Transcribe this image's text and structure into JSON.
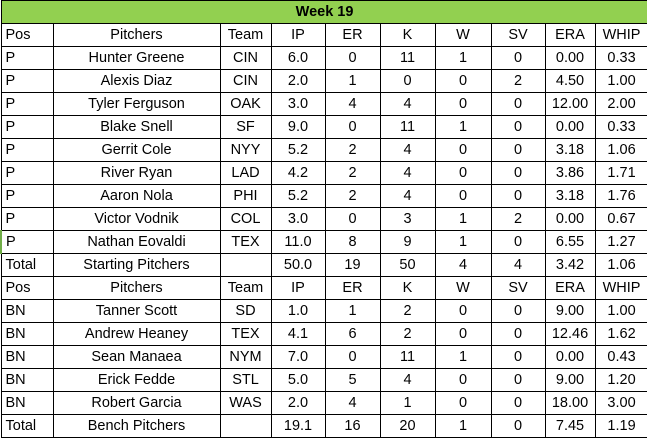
{
  "title": "Week 19",
  "colors": {
    "title_bg": "#92d050",
    "grid": "#000000"
  },
  "starting": {
    "header": [
      "Pos",
      "Pitchers",
      "Team",
      "IP",
      "ER",
      "K",
      "W",
      "SV",
      "ERA",
      "WHIP"
    ],
    "rows": [
      [
        "P",
        "Hunter Greene",
        "CIN",
        "6.0",
        "0",
        "11",
        "1",
        "0",
        "0.00",
        "0.33"
      ],
      [
        "P",
        "Alexis Diaz",
        "CIN",
        "2.0",
        "1",
        "0",
        "0",
        "2",
        "4.50",
        "1.00"
      ],
      [
        "P",
        "Tyler Ferguson",
        "OAK",
        "3.0",
        "4",
        "4",
        "0",
        "0",
        "12.00",
        "2.00"
      ],
      [
        "P",
        "Blake Snell",
        "SF",
        "9.0",
        "0",
        "11",
        "1",
        "0",
        "0.00",
        "0.33"
      ],
      [
        "P",
        "Gerrit Cole",
        "NYY",
        "5.2",
        "2",
        "4",
        "0",
        "0",
        "3.18",
        "1.06"
      ],
      [
        "P",
        "River Ryan",
        "LAD",
        "4.2",
        "2",
        "4",
        "0",
        "0",
        "3.86",
        "1.71"
      ],
      [
        "P",
        "Aaron Nola",
        "PHI",
        "5.2",
        "2",
        "4",
        "0",
        "0",
        "3.18",
        "1.76"
      ],
      [
        "P",
        "Victor Vodnik",
        "COL",
        "3.0",
        "0",
        "3",
        "1",
        "2",
        "0.00",
        "0.67"
      ],
      [
        "P",
        "Nathan Eovaldi",
        "TEX",
        "11.0",
        "8",
        "9",
        "1",
        "0",
        "6.55",
        "1.27"
      ]
    ],
    "total": [
      "Total",
      "Starting Pitchers",
      "",
      "50.0",
      "19",
      "50",
      "4",
      "4",
      "3.42",
      "1.06"
    ]
  },
  "bench": {
    "header": [
      "Pos",
      "Pitchers",
      "Team",
      "IP",
      "ER",
      "K",
      "W",
      "SV",
      "ERA",
      "WHIP"
    ],
    "rows": [
      [
        "BN",
        "Tanner Scott",
        "SD",
        "1.0",
        "1",
        "2",
        "0",
        "0",
        "9.00",
        "1.00"
      ],
      [
        "BN",
        "Andrew Heaney",
        "TEX",
        "4.1",
        "6",
        "2",
        "0",
        "0",
        "12.46",
        "1.62"
      ],
      [
        "BN",
        "Sean Manaea",
        "NYM",
        "7.0",
        "0",
        "11",
        "1",
        "0",
        "0.00",
        "0.43"
      ],
      [
        "BN",
        "Erick Fedde",
        "STL",
        "5.0",
        "5",
        "4",
        "0",
        "0",
        "9.00",
        "1.20"
      ],
      [
        "BN",
        "Robert Garcia",
        "WAS",
        "2.0",
        "4",
        "1",
        "0",
        "0",
        "18.00",
        "3.00"
      ]
    ],
    "total": [
      "Total",
      "Bench Pitchers",
      "",
      "19.1",
      "16",
      "20",
      "1",
      "0",
      "7.45",
      "1.19"
    ]
  }
}
